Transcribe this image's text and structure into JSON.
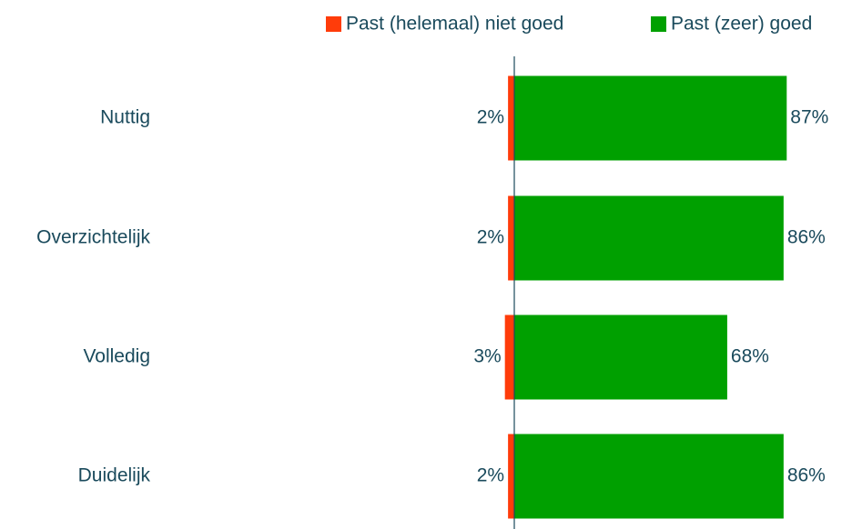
{
  "chart_data": {
    "type": "diverging_bar",
    "categories": [
      "Nuttig",
      "Overzichtelijk",
      "Volledig",
      "Duidelijk"
    ],
    "series": [
      {
        "name": "Past (helemaal) niet goed",
        "color": "#ff3c0a",
        "values": [
          2,
          2,
          3,
          2
        ],
        "value_labels": [
          "2%",
          "2%",
          "3%",
          "2%"
        ]
      },
      {
        "name": "Past (zeer) goed",
        "color": "#00a000",
        "values": [
          87,
          86,
          68,
          86
        ],
        "value_labels": [
          "87%",
          "86%",
          "68%",
          "86%"
        ]
      }
    ]
  }
}
